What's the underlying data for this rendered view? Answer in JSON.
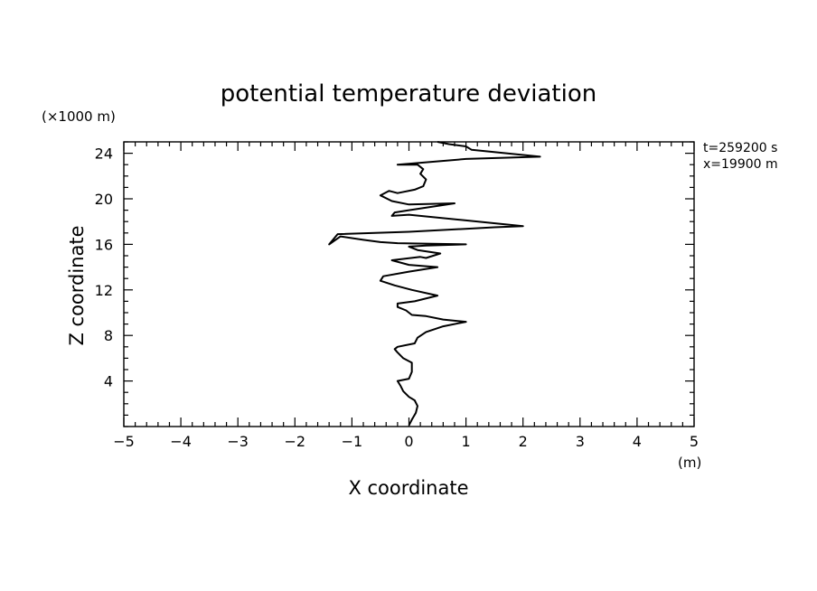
{
  "chart_data": {
    "type": "line",
    "title": "potential temperature deviation",
    "xlabel": "X coordinate",
    "ylabel": "Z coordinate",
    "x_unit": "(m)",
    "y_unit": "(×1000 m)",
    "annotations": [
      "t=259200 s",
      "x=19900 m"
    ],
    "xlim": [
      -5,
      5
    ],
    "ylim": [
      0,
      25
    ],
    "x_ticks": [
      -5,
      -4,
      -3,
      -2,
      -1,
      0,
      1,
      2,
      3,
      4,
      5
    ],
    "y_ticks": [
      4,
      8,
      12,
      16,
      20,
      24
    ],
    "grid": false,
    "series": [
      {
        "x": [
          0.0,
          0.05,
          0.12,
          0.15,
          0.1,
          0.0,
          -0.1,
          -0.15,
          -0.2,
          0.0,
          0.05,
          0.05,
          -0.1,
          -0.2,
          -0.25,
          -0.2,
          0.1,
          0.15,
          0.3,
          0.6,
          1.0,
          0.6,
          0.3,
          0.05,
          0.0,
          -0.05,
          -0.2,
          -0.2,
          0.1,
          0.5,
          0.05,
          -0.25,
          -0.5,
          -0.45,
          0.0,
          0.5,
          0.0,
          -0.3,
          0.2,
          0.3,
          0.55,
          0.15,
          0.0,
          0.3,
          1.0,
          -0.2,
          -0.5,
          -0.8,
          -1.2,
          -1.4,
          -1.25,
          0.0,
          1.5,
          2.0,
          1.0,
          0.0,
          -0.3,
          -0.25,
          0.0,
          0.8,
          0.0,
          -0.3,
          -0.5,
          -0.35,
          -0.2,
          0.1,
          0.25,
          0.3,
          0.2,
          0.25,
          0.15,
          0.0,
          -0.2,
          1.0,
          2.3,
          1.1,
          1.0,
          0.7,
          0.5
        ],
        "y": [
          0.1,
          0.6,
          1.2,
          1.8,
          2.3,
          2.6,
          3.1,
          3.6,
          4.0,
          4.2,
          4.8,
          5.6,
          6.0,
          6.5,
          6.8,
          7.0,
          7.3,
          7.8,
          8.3,
          8.8,
          9.2,
          9.4,
          9.7,
          9.8,
          10.0,
          10.2,
          10.5,
          10.8,
          11.0,
          11.5,
          12.0,
          12.4,
          12.8,
          13.2,
          13.6,
          14.0,
          14.2,
          14.6,
          14.9,
          14.8,
          15.2,
          15.5,
          15.8,
          15.9,
          16.0,
          16.1,
          16.2,
          16.4,
          16.7,
          16.0,
          16.9,
          17.1,
          17.5,
          17.6,
          18.1,
          18.6,
          18.5,
          18.8,
          19.0,
          19.6,
          19.5,
          19.8,
          20.3,
          20.7,
          20.5,
          20.8,
          21.1,
          21.7,
          22.2,
          22.6,
          23.0,
          23.0,
          23.0,
          23.5,
          23.7,
          24.3,
          24.6,
          24.8,
          25.0
        ]
      }
    ]
  }
}
